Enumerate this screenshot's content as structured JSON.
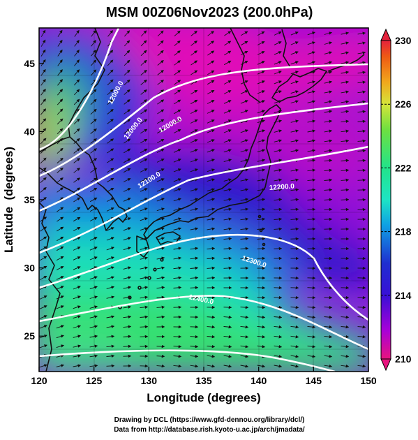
{
  "title": "MSM 00Z06Nov2023 (200.0hPa)",
  "axes": {
    "xlabel": "Longitude (degrees)",
    "ylabel": "Latitude  (degrees)",
    "x_ticks": [
      "120",
      "125",
      "130",
      "135",
      "140",
      "145",
      "150"
    ],
    "y_ticks": [
      "25",
      "30",
      "35",
      "40",
      "45"
    ],
    "lon_range": [
      120,
      150
    ],
    "lat_range": [
      22.4,
      47.6
    ]
  },
  "colorbar": {
    "ticks": [
      "230",
      "226",
      "222",
      "218",
      "214",
      "210"
    ],
    "range": [
      210,
      230
    ],
    "colors": [
      "#e8147e",
      "#a800d8",
      "#1f13d0",
      "#0fa0e4",
      "#1ee4c4",
      "#22e38a",
      "#48e040",
      "#a6e034",
      "#d5e43a",
      "#f1a71c",
      "#ee5914",
      "#e4223c"
    ]
  },
  "contours": {
    "labels": [
      "12000.0",
      "12000.0",
      "12000.0",
      "12100.0",
      "12200.0",
      "12300.0",
      "12400.0"
    ]
  },
  "footer": {
    "line1": "Drawing by DCL (https://www.gfd-dennou.org/library/dcl/)",
    "line2": "Data from http://database.rish.kyoto-u.ac.jp/arch/jmadata/"
  },
  "colors": {
    "land_outline": "#111111",
    "contour": "#ffffff",
    "arrows": "#111111"
  }
}
